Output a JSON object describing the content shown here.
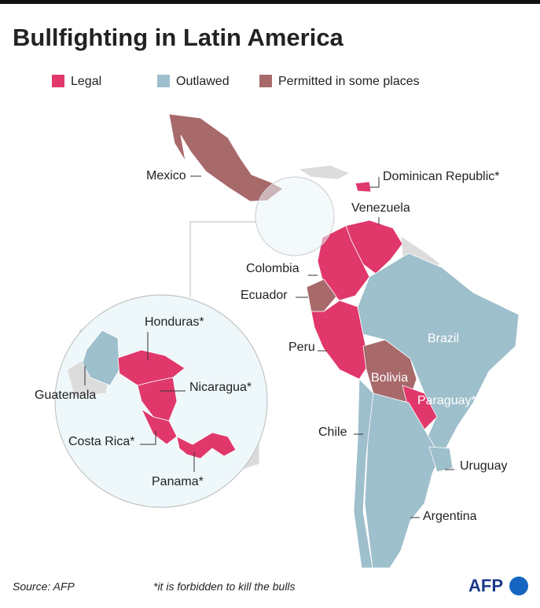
{
  "title": "Bullfighting in Latin America",
  "legend": [
    {
      "label": "Legal",
      "color": "#e0386b"
    },
    {
      "label": "Outlawed",
      "color": "#9ebfcc"
    },
    {
      "label": "Permitted in some places",
      "color": "#a8696b"
    }
  ],
  "countries": {
    "mexico": "Mexico",
    "dominican_republic": "Dominican Republic*",
    "venezuela": "Venezuela",
    "colombia": "Colombia",
    "ecuador": "Ecuador",
    "peru": "Peru",
    "brazil": "Brazil",
    "bolivia": "Bolivia",
    "paraguay": "Paraguay*",
    "chile": "Chile",
    "uruguay": "Uruguay",
    "argentina": "Argentina",
    "honduras": "Honduras*",
    "guatemala": "Guatemala",
    "nicaragua": "Nicaragua*",
    "costa_rica": "Costa Rica*",
    "panama": "Panama*"
  },
  "source": "Source: AFP",
  "note": "*it is forbidden to kill the bulls",
  "logo": "AFP"
}
